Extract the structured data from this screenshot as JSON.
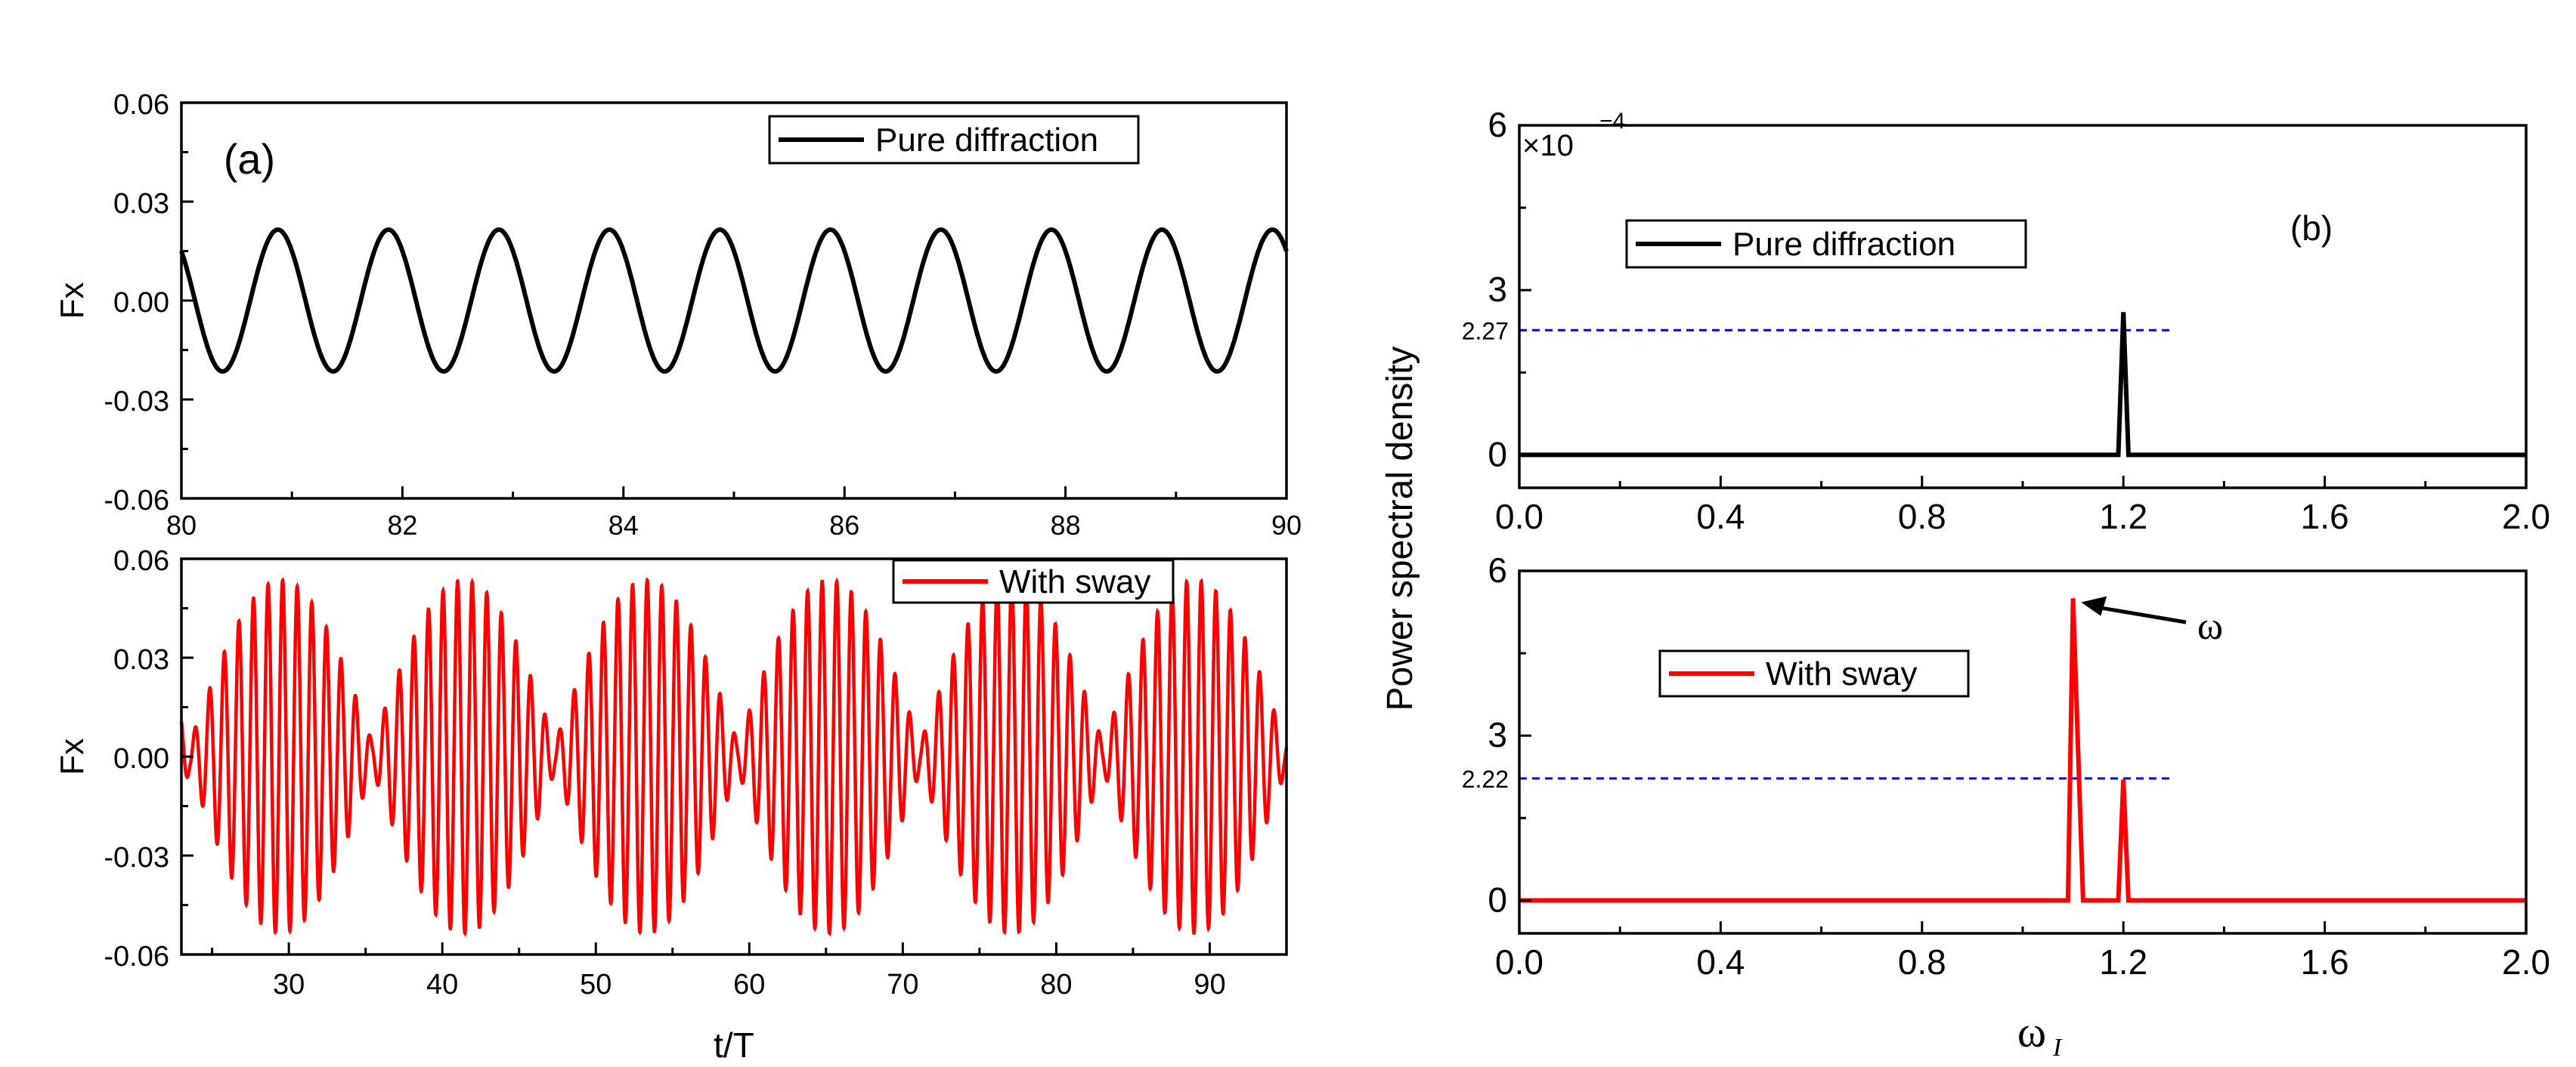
{
  "chart_data": [
    {
      "id": "a_top",
      "type": "line",
      "panel_label": "(a)",
      "ylabel": "Fx",
      "xlabel": "",
      "xlim": [
        80,
        90
      ],
      "ylim": [
        -0.06,
        0.06
      ],
      "xticks": [
        "80",
        "82",
        "84",
        "86",
        "88",
        "90"
      ],
      "yticks": [
        "0.06",
        "0.03",
        "0.00",
        "-0.03",
        "-0.06"
      ],
      "legend": "Pure diffraction",
      "legend_position": "top-right",
      "series": [
        {
          "name": "Pure diffraction",
          "color": "#000000",
          "signal": {
            "amplitude": 0.0215,
            "period": 1.0,
            "phase_x": 80.0,
            "phase_value": 0.015
          }
        }
      ]
    },
    {
      "id": "a_bottom",
      "type": "line",
      "ylabel": "Fx",
      "xlabel": "t/T",
      "xlim": [
        23,
        95
      ],
      "ylim": [
        -0.06,
        0.06
      ],
      "xticks": [
        "30",
        "40",
        "50",
        "60",
        "70",
        "80",
        "90"
      ],
      "yticks": [
        "0.06",
        "0.03",
        "0.00",
        "-0.03",
        "-0.06"
      ],
      "legend": "With sway",
      "legend_position": "top-center",
      "series": [
        {
          "name": "With sway",
          "color": "#ff0000",
          "signal": {
            "amplitude": 0.0535,
            "carrier_period": 0.95,
            "beat_period": 11.9,
            "beat_peaks": [
              29.5,
              41.3,
              53.2,
              65.1,
              77.0,
              88.9
            ]
          }
        }
      ]
    },
    {
      "id": "b_top",
      "type": "line",
      "panel_label": "(b)",
      "ylabel": "Power spectral density",
      "xlabel": "",
      "scale_label": "×10",
      "scale_exp": "−4",
      "xlim": [
        0.0,
        2.0
      ],
      "ylim": [
        -0.6,
        6
      ],
      "xticks": [
        "0.0",
        "0.4",
        "0.8",
        "1.2",
        "1.6",
        "2.0"
      ],
      "yticks": [
        "6",
        "3",
        "0"
      ],
      "legend": "Pure diffraction",
      "legend_position": "top-left",
      "reference_line": {
        "value": 2.27,
        "label": "2.27",
        "x_end": 1.3,
        "color": "#0000ff"
      },
      "series": [
        {
          "name": "Pure diffraction",
          "color": "#000000",
          "x": [
            0.0,
            1.19,
            1.2,
            1.21,
            2.0
          ],
          "y": [
            0.0,
            0.0,
            2.6,
            0.0,
            0.0
          ]
        }
      ]
    },
    {
      "id": "b_bottom",
      "type": "line",
      "ylabel": "",
      "xlabel": "ω",
      "xlabel_sub": "I",
      "xlim": [
        0.0,
        2.0
      ],
      "ylim": [
        -0.6,
        6
      ],
      "xticks": [
        "0.0",
        "0.4",
        "0.8",
        "1.2",
        "1.6",
        "2.0"
      ],
      "yticks": [
        "6",
        "3",
        "0"
      ],
      "legend": "With sway",
      "legend_position": "left",
      "reference_line": {
        "value": 2.22,
        "label": "2.22",
        "x_end": 1.3,
        "color": "#0000ff"
      },
      "annotation": {
        "text": "ω",
        "arrow_to": [
          1.11,
          5.4
        ]
      },
      "series": [
        {
          "name": "With sway",
          "color": "#ff0000",
          "x": [
            0.0,
            1.09,
            1.1,
            1.12,
            1.19,
            1.2,
            1.21,
            2.0
          ],
          "y": [
            0.0,
            0.0,
            5.5,
            0.0,
            0.0,
            2.2,
            0.0,
            0.0
          ]
        }
      ]
    }
  ]
}
